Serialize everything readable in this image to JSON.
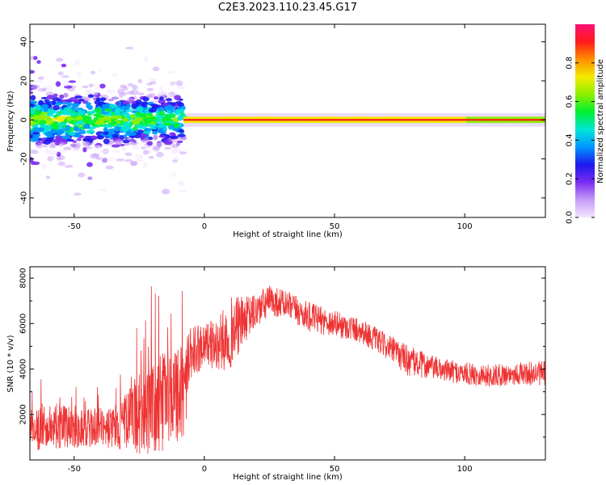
{
  "title": "C2E3.2023.110.23.45.G17",
  "chart_data": [
    {
      "type": "heatmap",
      "xlabel": "Height of straight line (km)",
      "ylabel": "Frequency (Hz)",
      "xlim": [
        -67,
        131
      ],
      "ylim": [
        -50,
        49
      ],
      "x_ticks": [
        -50,
        0,
        50,
        100
      ],
      "y_ticks": [
        -40,
        -20,
        0,
        20,
        40
      ],
      "grid": false,
      "legend": "none",
      "colorbar": {
        "label": "Normalized spectral amplitude",
        "range": [
          0,
          1
        ],
        "ticks": [
          0.0,
          0.2,
          0.4,
          0.6,
          0.8
        ],
        "ticks_text": [
          "0.0",
          "0.2",
          "0.4",
          "0.6",
          "0.8"
        ],
        "colormap": [
          "#f2e6ff",
          "#c79cf7",
          "#7b2df0",
          "#1d18ee",
          "#0096ff",
          "#00e6d6",
          "#00ef33",
          "#8cf000",
          "#f3ea00",
          "#ff8f00",
          "#ff1a1a",
          "#ff0f78"
        ]
      },
      "description_note": "",
      "bands": [
        {
          "x_range": [
            -67,
            -8
          ],
          "y_spread": 8,
          "intensity": 0.5
        },
        {
          "x_range": [
            -8,
            131
          ],
          "y_center": 0,
          "y_spread": 1.5,
          "intensity": 0.9
        }
      ]
    },
    {
      "type": "line",
      "xlabel": "Height of straight line (km)",
      "ylabel": "SNR (10 * v/v)",
      "xlim": [
        -67,
        131
      ],
      "ylim": [
        0,
        8500
      ],
      "x_ticks": [
        -50,
        0,
        50,
        100
      ],
      "y_ticks": [
        2000,
        4000,
        6000,
        8000
      ],
      "grid": false,
      "legend": "none",
      "color": "#ee3333",
      "envelope": {
        "x": [
          -67,
          -55,
          -45,
          -35,
          -25,
          -15,
          -8,
          -5,
          0,
          5,
          10,
          17,
          25,
          30,
          40,
          50,
          60,
          70,
          78,
          80,
          90,
          100,
          110,
          120,
          131
        ],
        "mean": [
          1300,
          1500,
          1400,
          1400,
          2000,
          2600,
          3000,
          4600,
          5200,
          5000,
          5600,
          6300,
          7000,
          6900,
          6300,
          6000,
          5700,
          5000,
          4400,
          4300,
          4000,
          3800,
          3700,
          3800,
          3800
        ],
        "spread": [
          900,
          1000,
          900,
          900,
          1800,
          2200,
          2100,
          1300,
          900,
          1200,
          1600,
          900,
          700,
          650,
          650,
          600,
          550,
          550,
          700,
          650,
          500,
          500,
          500,
          500,
          550
        ]
      }
    }
  ]
}
